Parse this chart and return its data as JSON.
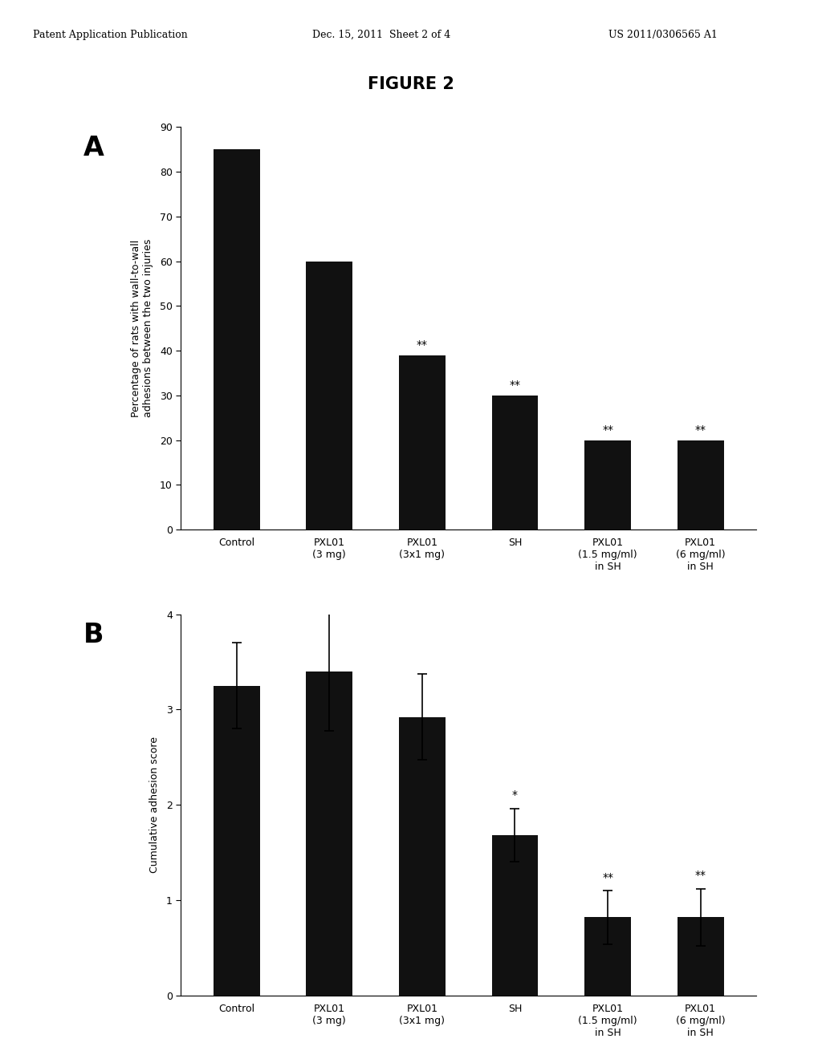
{
  "title": "FIGURE 2",
  "header_left": "Patent Application Publication",
  "header_center": "Dec. 15, 2011  Sheet 2 of 4",
  "header_right": "US 2011/0306565 A1",
  "panel_A_label": "A",
  "panel_A_ylabel": "Percentage of rats with wall-to-wall\nadhesions between the two injuries",
  "panel_A_ylim": [
    0,
    90
  ],
  "panel_A_yticks": [
    0,
    10,
    20,
    30,
    40,
    50,
    60,
    70,
    80,
    90
  ],
  "panel_A_values": [
    85,
    60,
    39,
    30,
    20,
    20
  ],
  "panel_A_significance": [
    "",
    "",
    "**",
    "**",
    "**",
    "**"
  ],
  "panel_A_categories": [
    "Control",
    "PXL01\n(3 mg)",
    "PXL01\n(3x1 mg)",
    "SH",
    "PXL01\n(1.5 mg/ml)\nin SH",
    "PXL01\n(6 mg/ml)\nin SH"
  ],
  "panel_B_label": "B",
  "panel_B_ylabel": "Cumulative adhesion score",
  "panel_B_ylim": [
    0,
    4
  ],
  "panel_B_yticks": [
    0,
    1,
    2,
    3,
    4
  ],
  "panel_B_values": [
    3.25,
    3.4,
    2.92,
    1.68,
    0.82,
    0.82
  ],
  "panel_B_errors": [
    0.45,
    0.62,
    0.45,
    0.28,
    0.28,
    0.3
  ],
  "panel_B_significance": [
    "",
    "",
    "",
    "*",
    "**",
    "**"
  ],
  "panel_B_categories": [
    "Control",
    "PXL01\n(3 mg)",
    "PXL01\n(3x1 mg)",
    "SH",
    "PXL01\n(1.5 mg/ml)\nin SH",
    "PXL01\n(6 mg/ml)\nin SH"
  ],
  "bar_color": "#111111",
  "background_color": "#ffffff",
  "fig_width": 10.24,
  "fig_height": 13.2
}
